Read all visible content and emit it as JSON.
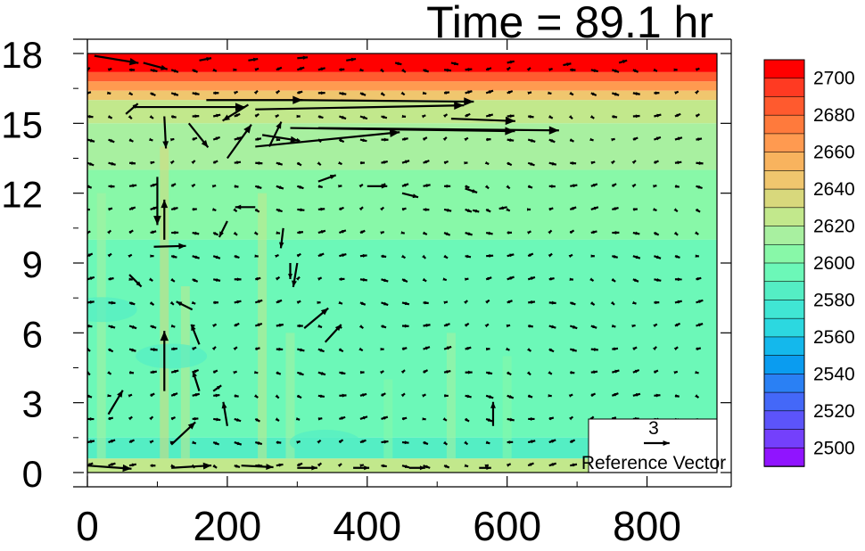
{
  "title": "Time = 89.1 hr",
  "chart_data": {
    "type": "heatmap",
    "overlay": "vector-field",
    "x_ticks": [
      0,
      200,
      400,
      600,
      800
    ],
    "y_ticks": [
      0,
      3,
      6,
      9,
      12,
      15,
      18
    ],
    "xlim": [
      0,
      900
    ],
    "ylim": [
      0,
      18
    ],
    "colorbar": {
      "levels": [
        2700,
        2690,
        2680,
        2670,
        2660,
        2650,
        2640,
        2630,
        2620,
        2610,
        2600,
        2590,
        2580,
        2570,
        2560,
        2550,
        2540,
        2530,
        2520,
        2510,
        2500,
        2490
      ],
      "labels": [
        "2700",
        "2680",
        "2660",
        "2640",
        "2620",
        "2600",
        "2580",
        "2560",
        "2540",
        "2520",
        "2500"
      ],
      "colors": [
        "#ff0000",
        "#ff3a22",
        "#ff5a2e",
        "#ff7a3c",
        "#ff9a50",
        "#f8b35e",
        "#f0c66e",
        "#d8d87c",
        "#c2e88c",
        "#a8f0a0",
        "#88f8a8",
        "#6cf8b8",
        "#54eec4",
        "#40e6d4",
        "#2cd8e0",
        "#14b8ec",
        "#0a9cf0",
        "#2a80f4",
        "#4468f8",
        "#5c54fa",
        "#7440fc",
        "#9014ff"
      ]
    },
    "field_bands": [
      {
        "y0": 17.2,
        "y1": 18,
        "value": 2700
      },
      {
        "y0": 16.8,
        "y1": 17.2,
        "value": 2680
      },
      {
        "y0": 16.4,
        "y1": 16.8,
        "value": 2660
      },
      {
        "y0": 16.0,
        "y1": 16.4,
        "value": 2640
      },
      {
        "y0": 15.0,
        "y1": 16.0,
        "value": 2620
      },
      {
        "y0": 13.0,
        "y1": 15.0,
        "value": 2610
      },
      {
        "y0": 10.0,
        "y1": 13.0,
        "value": 2600
      },
      {
        "y0": 1.5,
        "y1": 10.0,
        "value": 2590
      },
      {
        "y0": 0.6,
        "y1": 1.5,
        "value": 2580
      },
      {
        "y0": 0.0,
        "y1": 0.6,
        "value": 2620
      }
    ],
    "reference_vector": {
      "magnitude": 3,
      "label": "Reference Vector"
    },
    "vectors": [
      {
        "x": 10,
        "y": 17.9,
        "u": 5.5,
        "v": -0.9
      },
      {
        "x": 80,
        "y": 17.6,
        "u": 3,
        "v": -0.8
      },
      {
        "x": 160,
        "y": 17.7,
        "u": 1.5,
        "v": 0.3
      },
      {
        "x": 230,
        "y": 17.7,
        "u": 1.2,
        "v": 0.2
      },
      {
        "x": 300,
        "y": 17.8,
        "u": 1.3,
        "v": 0.1
      },
      {
        "x": 370,
        "y": 17.7,
        "u": 1.2,
        "v": 0.2
      },
      {
        "x": 440,
        "y": 17.6,
        "u": 0.8,
        "v": -0.2
      },
      {
        "x": 520,
        "y": 17.6,
        "u": 0.9,
        "v": -0.2
      },
      {
        "x": 600,
        "y": 17.6,
        "u": 0.9,
        "v": 0.2
      },
      {
        "x": 680,
        "y": 17.5,
        "u": 1.0,
        "v": 0.2
      },
      {
        "x": 760,
        "y": 17.6,
        "u": 1.0,
        "v": 0.3
      },
      {
        "x": 65,
        "y": 15.7,
        "u": 14,
        "v": 0
      },
      {
        "x": 170,
        "y": 16.0,
        "u": 12,
        "v": 0
      },
      {
        "x": 240,
        "y": 15.6,
        "u": 26,
        "v": 0.5
      },
      {
        "x": 300,
        "y": 16.0,
        "u": 22,
        "v": -0.2
      },
      {
        "x": 240,
        "y": 14.0,
        "u": 18,
        "v": 1.8
      },
      {
        "x": 290,
        "y": 14.8,
        "u": 28,
        "v": -0.4
      },
      {
        "x": 330,
        "y": 14.8,
        "u": 30,
        "v": -0.3
      },
      {
        "x": 520,
        "y": 15.2,
        "u": 8,
        "v": -0.3
      },
      {
        "x": 55,
        "y": 15.4,
        "u": 1.5,
        "v": 1.3
      },
      {
        "x": 100,
        "y": 12.7,
        "u": 0,
        "v": -6
      },
      {
        "x": 110,
        "y": 15.3,
        "u": 0.2,
        "v": -4
      },
      {
        "x": 145,
        "y": 15.0,
        "u": 2.4,
        "v": -3.0
      },
      {
        "x": 200,
        "y": 13.5,
        "u": 3.0,
        "v": 4.2
      },
      {
        "x": 230,
        "y": 15.8,
        "u": -3.2,
        "v": -2.0
      },
      {
        "x": 260,
        "y": 14.0,
        "u": 1.5,
        "v": 3.1
      },
      {
        "x": 250,
        "y": 14.5,
        "u": 4.5,
        "v": -0.7
      },
      {
        "x": 330,
        "y": 12.5,
        "u": 2.2,
        "v": 0.8
      },
      {
        "x": 400,
        "y": 12.3,
        "u": 2.5,
        "v": 0
      },
      {
        "x": 450,
        "y": 12.0,
        "u": 2.0,
        "v": -0.5
      },
      {
        "x": 540,
        "y": 12.2,
        "u": 1.5,
        "v": -0.5
      },
      {
        "x": 560,
        "y": 11.2,
        "u": -0.8,
        "v": 0.2
      },
      {
        "x": 600,
        "y": 11.4,
        "u": -1.0,
        "v": -0.2
      },
      {
        "x": 95,
        "y": 9.7,
        "u": 4.0,
        "v": 0.1
      },
      {
        "x": 110,
        "y": 10.0,
        "u": 0,
        "v": 5.0
      },
      {
        "x": 110,
        "y": 3.5,
        "u": 0,
        "v": 7.5
      },
      {
        "x": 200,
        "y": 10.8,
        "u": -1.0,
        "v": -2.0
      },
      {
        "x": 240,
        "y": 11.4,
        "u": -2.5,
        "v": 0
      },
      {
        "x": 280,
        "y": 10.5,
        "u": -0.3,
        "v": -2.5
      },
      {
        "x": 290,
        "y": 9.0,
        "u": 0,
        "v": -2.0
      },
      {
        "x": 300,
        "y": 9.0,
        "u": -0.5,
        "v": -3.0
      },
      {
        "x": 310,
        "y": 6.2,
        "u": 3.0,
        "v": 2.5
      },
      {
        "x": 340,
        "y": 5.6,
        "u": 2.0,
        "v": 2.2
      },
      {
        "x": 60,
        "y": 8.5,
        "u": 1.5,
        "v": -1.5
      },
      {
        "x": 150,
        "y": 7.0,
        "u": -2.0,
        "v": 1.0
      },
      {
        "x": 160,
        "y": 5.5,
        "u": -1.0,
        "v": 2.5
      },
      {
        "x": 160,
        "y": 3.5,
        "u": -0.8,
        "v": 2.5
      },
      {
        "x": 120,
        "y": 1.2,
        "u": 3.0,
        "v": 2.8
      },
      {
        "x": 180,
        "y": 3.5,
        "u": 1.0,
        "v": 0.7
      },
      {
        "x": 200,
        "y": 2.0,
        "u": -0.5,
        "v": 3.0
      },
      {
        "x": 30,
        "y": 2.5,
        "u": 1.8,
        "v": 3.0
      },
      {
        "x": 0,
        "y": 0.3,
        "u": 5.5,
        "v": -0.4
      },
      {
        "x": 120,
        "y": 0.2,
        "u": 5.0,
        "v": 0.3
      },
      {
        "x": 220,
        "y": 0.3,
        "u": 4.0,
        "v": -0.2
      },
      {
        "x": 300,
        "y": 0.2,
        "u": 2.5,
        "v": 0
      },
      {
        "x": 380,
        "y": 0.2,
        "u": 2.0,
        "v": 0
      },
      {
        "x": 460,
        "y": 0.2,
        "u": 2.0,
        "v": 0
      },
      {
        "x": 560,
        "y": 0.2,
        "u": 1.5,
        "v": 0
      },
      {
        "x": 580,
        "y": 2.0,
        "u": 0,
        "v": 3.0
      }
    ]
  }
}
